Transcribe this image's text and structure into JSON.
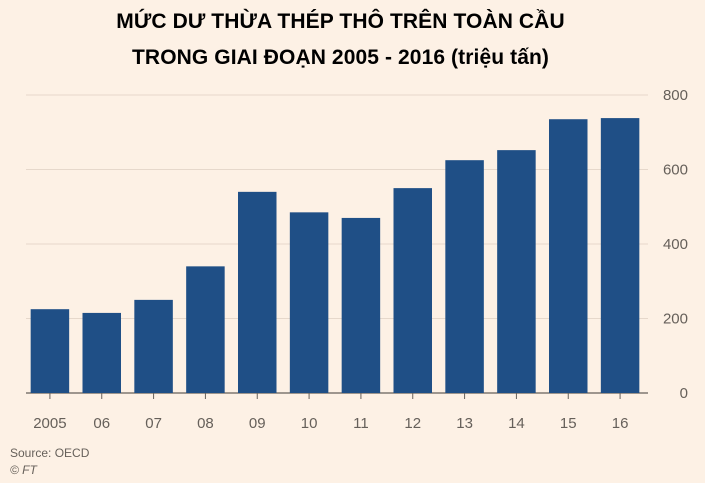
{
  "chart_data": {
    "type": "bar",
    "title": "MỨC DƯ THỪA THÉP THÔ TRÊN TOÀN CẦU",
    "subtitle": "TRONG GIAI ĐOẠN 2005 - 2016 (triệu tấn)",
    "categories": [
      "2005",
      "06",
      "07",
      "08",
      "09",
      "10",
      "11",
      "12",
      "13",
      "14",
      "15",
      "16"
    ],
    "values": [
      225,
      215,
      250,
      340,
      540,
      485,
      470,
      550,
      625,
      652,
      735,
      738
    ],
    "ylim": [
      0,
      800
    ],
    "yticks": [
      0,
      200,
      400,
      600,
      800
    ],
    "xlabel": "",
    "ylabel": "",
    "grid": true,
    "bar_color": "#1f4f86",
    "grid_color": "#e6d8cb",
    "axis_color": "#66605a"
  },
  "source": "Source: OECD",
  "credit": "© FT"
}
